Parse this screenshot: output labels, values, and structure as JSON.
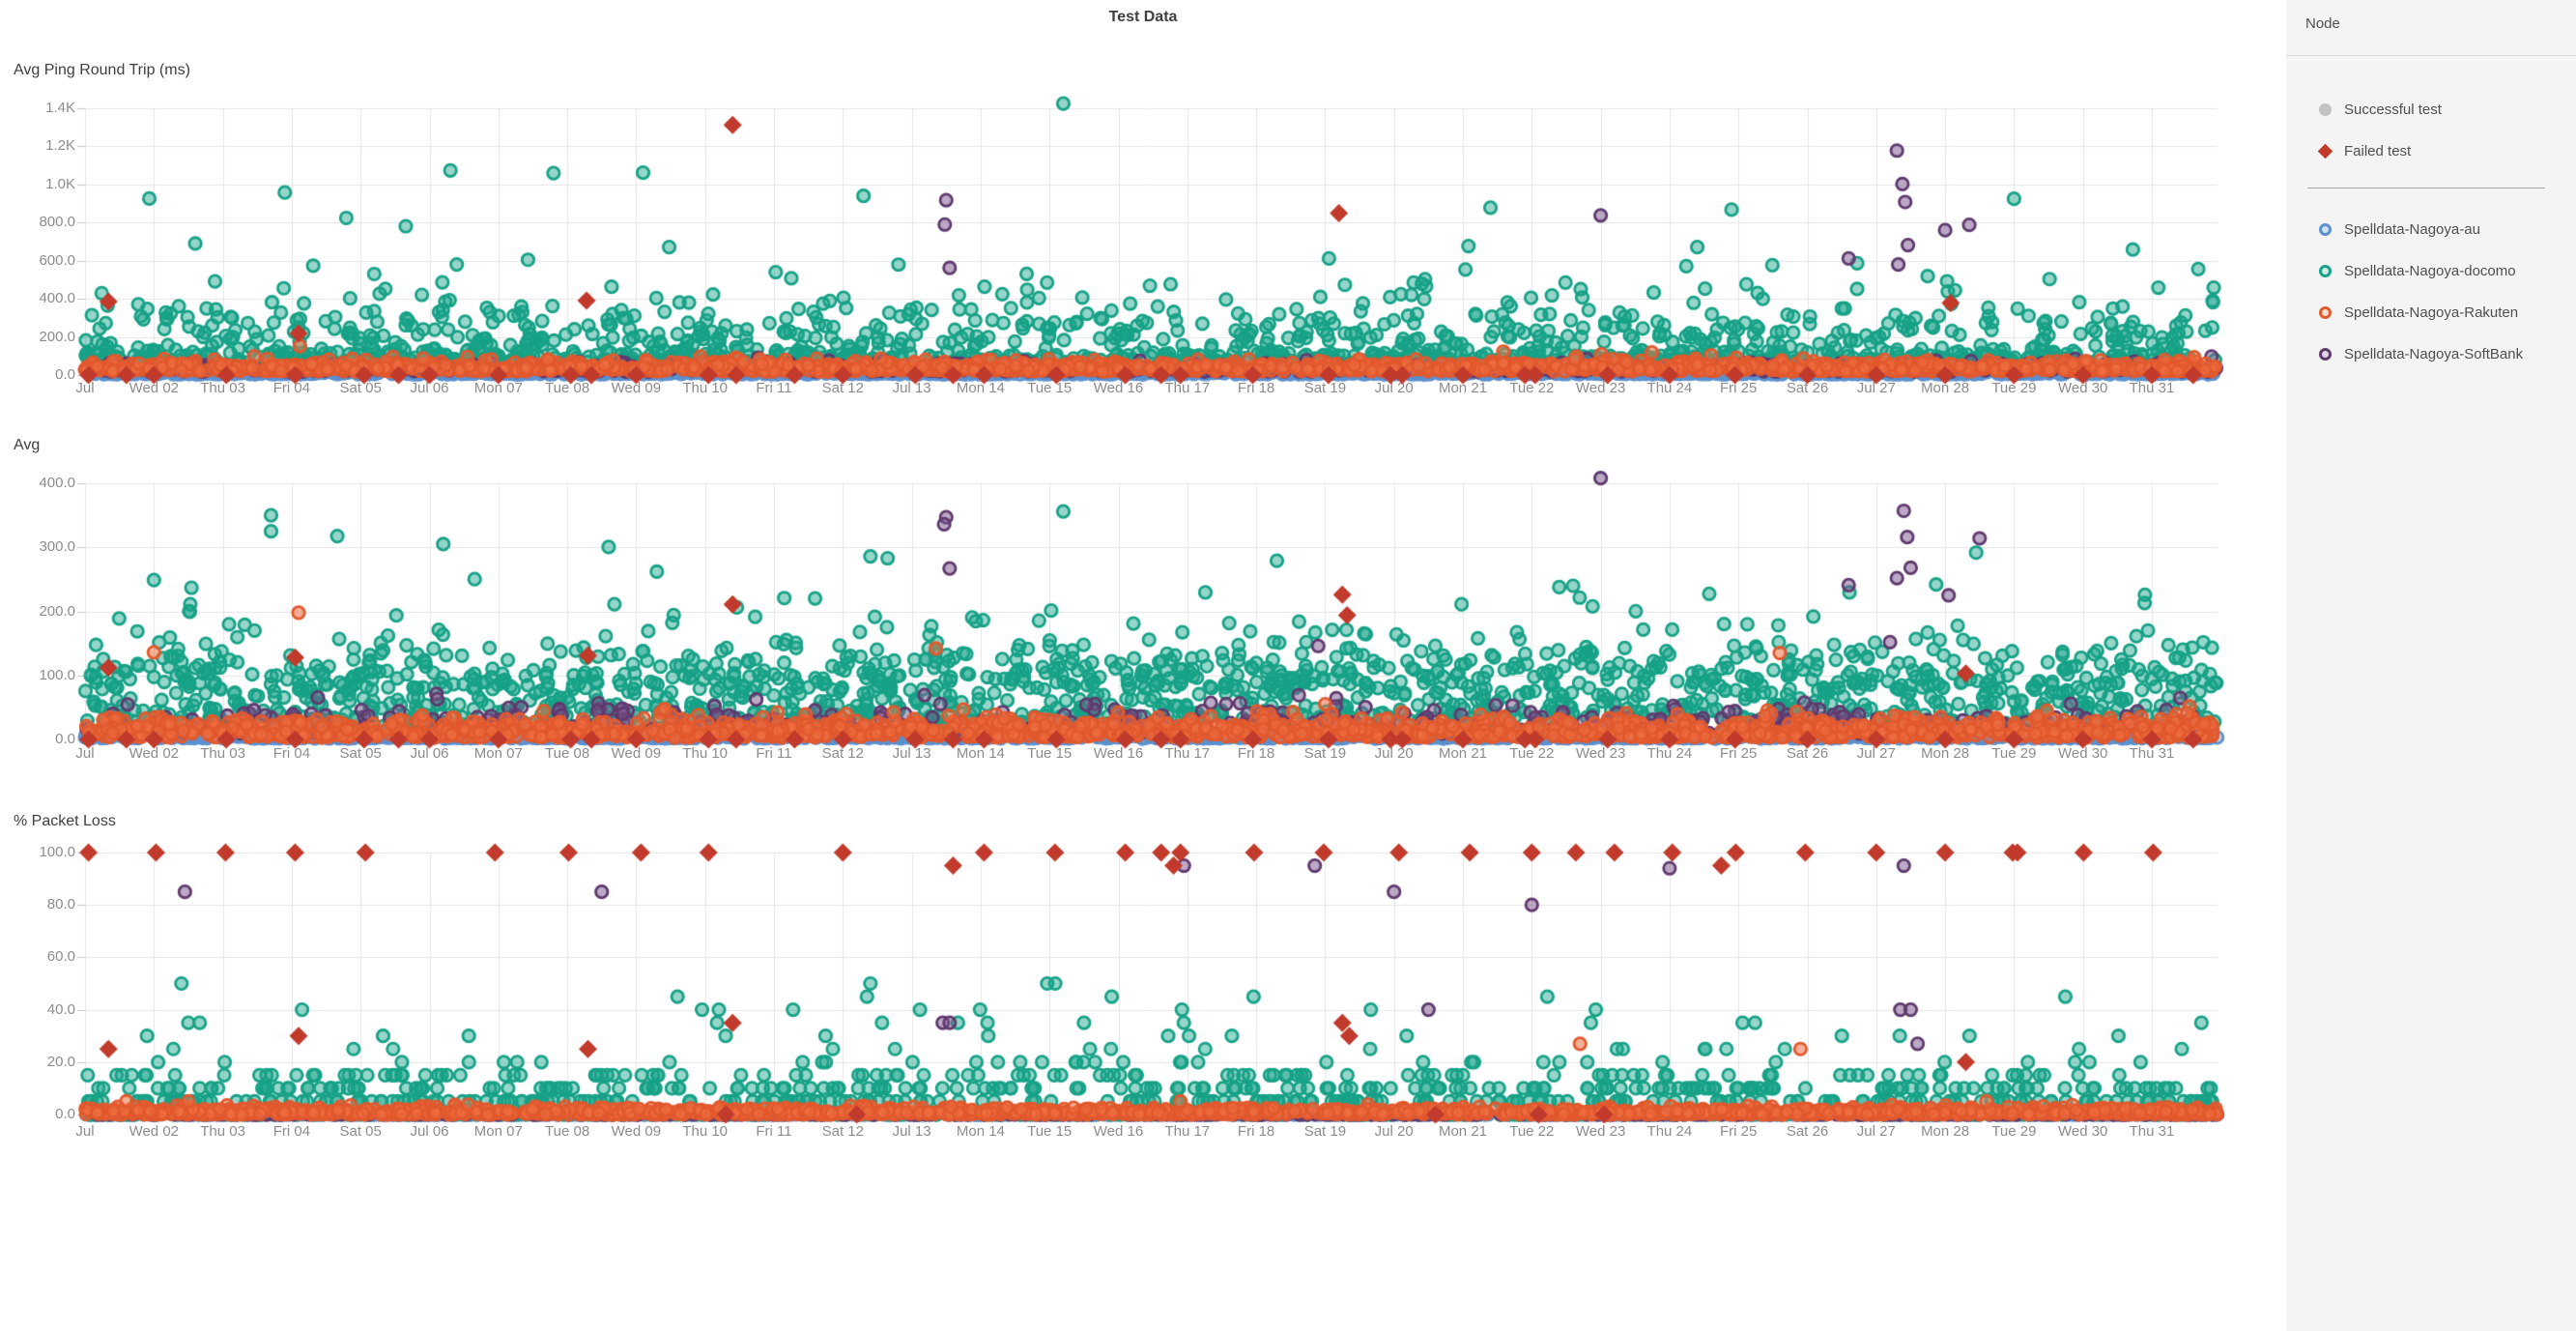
{
  "title": "Test Data",
  "palette": {
    "sidebarBg": "#f4f4f4",
    "divider1": "#dbdbdb",
    "divider2": "#a6a6a6",
    "titleText": "#3f3f3f",
    "axisText": "#8c8c8c",
    "legendText": "#4f4f4f",
    "grid": "#e4e4e4",
    "tickDash": "#c4c4c4",
    "success": "#c3c3c3",
    "failed": "#c13a2b",
    "au_stroke": "#5b91cf",
    "au_fill": "rgba(91,145,207,0.40)",
    "au_legend_fill": "#cfe0f2",
    "docomo_stroke": "#17a287",
    "docomo_fill": "rgba(23,162,135,0.45)",
    "docomo_legend_fill": "#d2ebe4",
    "rakuten_stroke": "#e2592e",
    "rakuten_fill": "rgba(238,112,66,0.55)",
    "rakuten_legend_fill": "#fadcd0",
    "softbank_stroke": "#5f3a6e",
    "softbank_fill": "rgba(122,83,140,0.50)",
    "softbank_legend_fill": "#e2d5e6"
  },
  "legend": {
    "title": "Node",
    "status": [
      {
        "label": "Successful test",
        "marker": "success"
      },
      {
        "label": "Failed test",
        "marker": "failed"
      }
    ],
    "nodes": [
      {
        "label": "Spelldata-Nagoya-au",
        "marker": "au"
      },
      {
        "label": "Spelldata-Nagoya-docomo",
        "marker": "docomo"
      },
      {
        "label": "Spelldata-Nagoya-Rakuten",
        "marker": "rakuten"
      },
      {
        "label": "Spelldata-Nagoya-SoftBank",
        "marker": "softbank"
      }
    ]
  },
  "chart_data": {
    "type": "scatter",
    "x_axis": "days of July, one test batch every ~30 min per node",
    "x_ticks": [
      "Jul",
      "Wed 02",
      "Thu 03",
      "Fri 04",
      "Sat 05",
      "Jul 06",
      "Mon 07",
      "Tue 08",
      "Wed 09",
      "Thu 10",
      "Fri 11",
      "Sat 12",
      "Jul 13",
      "Mon 14",
      "Tue 15",
      "Wed 16",
      "Thu 17",
      "Fri 18",
      "Sat 19",
      "Jul 20",
      "Mon 21",
      "Tue 22",
      "Wed 23",
      "Thu 24",
      "Fri 25",
      "Sat 26",
      "Jul 27",
      "Mon 28",
      "Tue 29",
      "Wed 30",
      "Thu 31"
    ],
    "x_domain_days": [
      1,
      31.95
    ],
    "grid": true,
    "legend_position": "right",
    "charts": [
      {
        "id": "ping",
        "title": "Avg Ping Round Trip (ms)",
        "ylim": [
          0,
          1460
        ],
        "y_ticks": [
          {
            "v": 0,
            "label": "0.0"
          },
          {
            "v": 200,
            "label": "200.0"
          },
          {
            "v": 400,
            "label": "400.0"
          },
          {
            "v": 600,
            "label": "600.0"
          },
          {
            "v": 800,
            "label": "800.0"
          },
          {
            "v": 1000,
            "label": "1.0K"
          },
          {
            "v": 1200,
            "label": "1.2K"
          },
          {
            "v": 1400,
            "label": "1.4K"
          }
        ],
        "series": [
          {
            "name": "Spelldata-Nagoya-au",
            "color": "au",
            "n": 1300,
            "seed": 101,
            "dist": {
              "kind": "band",
              "min": 4,
              "scale": 9,
              "max": 50
            },
            "outliers": []
          },
          {
            "name": "Spelldata-Nagoya-docomo",
            "color": "docomo",
            "n": 1350,
            "seed": 202,
            "dist": {
              "kind": "mix",
              "parts": [
                {
                  "w": 0.58,
                  "kind": "band",
                  "min": 62,
                  "scale": 40,
                  "max": 175
                },
                {
                  "w": 0.42,
                  "kind": "lognormal",
                  "base": 130,
                  "amp": 120,
                  "sigma": 0.7,
                  "max": 1090
                }
              ]
            },
            "outliers": [
              [
                15.2,
                1425
              ],
              [
                7.8,
                1060
              ],
              [
                9.1,
                1062
              ],
              [
                3.9,
                958
              ],
              [
                12.3,
                940
              ],
              [
                29.0,
                925
              ],
              [
                21.4,
                878
              ],
              [
                2.6,
                690
              ],
              [
                24.9,
                868
              ]
            ]
          },
          {
            "name": "Spelldata-Nagoya-SoftBank",
            "color": "softbank",
            "n": 520,
            "seed": 303,
            "dist": {
              "kind": "band",
              "min": 18,
              "scale": 24,
              "max": 110
            },
            "outliers": [
              [
                13.5,
                918
              ],
              [
                13.48,
                790
              ],
              [
                13.55,
                562
              ],
              [
                23.0,
                838
              ],
              [
                26.6,
                612
              ],
              [
                27.3,
                1178
              ],
              [
                27.38,
                1002
              ],
              [
                27.42,
                908
              ],
              [
                27.46,
                682
              ],
              [
                27.32,
                580
              ],
              [
                28.35,
                788
              ],
              [
                28.0,
                760
              ]
            ]
          },
          {
            "name": "Spelldata-Nagoya-Rakuten",
            "color": "rakuten",
            "n": 1420,
            "seed": 404,
            "dist": {
              "kind": "band",
              "min": 20,
              "scale": 26,
              "max": 125
            },
            "outliers": [
              [
                4.12,
                152
              ],
              [
                12.55,
                86
              ]
            ]
          }
        ],
        "failed_tests": {
          "at_zero_days": [
            1.05,
            1.6,
            2.0,
            3.05,
            4.05,
            5.05,
            5.55,
            6.0,
            7.0,
            8.05,
            8.35,
            9.0,
            10.05,
            10.45,
            11.3,
            12.0,
            13.05,
            13.6,
            14.05,
            15.1,
            16.1,
            16.62,
            16.9,
            17.95,
            19.05,
            19.95,
            20.12,
            21.0,
            21.9,
            22.05,
            23.1,
            24.0,
            24.95,
            26.0,
            27.0,
            28.0,
            29.0,
            30.0,
            31.0,
            31.6
          ],
          "points": [
            [
              1.34,
              385
            ],
            [
              4.1,
              218
            ],
            [
              8.28,
              390
            ],
            [
              10.4,
              1312
            ],
            [
              19.2,
              850
            ],
            [
              28.08,
              378
            ]
          ]
        }
      },
      {
        "id": "avg",
        "title": "Avg",
        "ylim": [
          0,
          432
        ],
        "y_ticks": [
          {
            "v": 0,
            "label": "0.0"
          },
          {
            "v": 100,
            "label": "100.0"
          },
          {
            "v": 200,
            "label": "200.0"
          },
          {
            "v": 300,
            "label": "300.0"
          },
          {
            "v": 400,
            "label": "400.0"
          }
        ],
        "series": [
          {
            "name": "Spelldata-Nagoya-au",
            "color": "au",
            "n": 1300,
            "seed": 111,
            "dist": {
              "kind": "band",
              "min": 1.5,
              "scale": 3.5,
              "max": 16
            },
            "outliers": []
          },
          {
            "name": "Spelldata-Nagoya-docomo",
            "color": "docomo",
            "n": 1650,
            "seed": 222,
            "dist": {
              "kind": "mix",
              "parts": [
                {
                  "w": 0.55,
                  "kind": "band",
                  "min": 20,
                  "scale": 34,
                  "max": 115
                },
                {
                  "w": 0.45,
                  "kind": "lognormal",
                  "base": 55,
                  "amp": 52,
                  "sigma": 0.56,
                  "max": 358
                }
              ]
            },
            "outliers": [
              [
                3.7,
                350
              ],
              [
                15.2,
                356
              ],
              [
                6.2,
                305
              ],
              [
                12.4,
                286
              ],
              [
                12.65,
                283
              ],
              [
                18.3,
                279
              ],
              [
                2.0,
                249
              ],
              [
                30.9,
                226
              ],
              [
                9.3,
                262
              ],
              [
                22.6,
                240
              ]
            ]
          },
          {
            "name": "Spelldata-Nagoya-SoftBank",
            "color": "softbank",
            "n": 520,
            "seed": 333,
            "dist": {
              "kind": "band",
              "min": 8,
              "scale": 22,
              "max": 85
            },
            "outliers": [
              [
                13.5,
                347
              ],
              [
                13.47,
                336
              ],
              [
                13.55,
                267
              ],
              [
                23.0,
                408
              ],
              [
                27.4,
                357
              ],
              [
                27.45,
                316
              ],
              [
                27.5,
                268
              ],
              [
                27.3,
                252
              ],
              [
                28.5,
                314
              ],
              [
                26.6,
                241
              ],
              [
                27.2,
                152
              ],
              [
                18.9,
                146
              ],
              [
                28.05,
                225
              ]
            ]
          },
          {
            "name": "Spelldata-Nagoya-Rakuten",
            "color": "rakuten",
            "n": 1500,
            "seed": 444,
            "dist": {
              "kind": "band",
              "min": 3,
              "scale": 15,
              "max": 52
            },
            "outliers": [
              [
                4.1,
                198
              ],
              [
                2.0,
                136
              ],
              [
                25.6,
                135
              ],
              [
                19.0,
                55
              ],
              [
                13.35,
                142
              ]
            ]
          }
        ],
        "failed_tests": {
          "at_zero_days": [
            1.05,
            1.6,
            2.0,
            3.05,
            4.05,
            5.05,
            5.55,
            6.0,
            7.0,
            8.05,
            8.35,
            9.0,
            10.05,
            10.45,
            11.3,
            12.0,
            13.05,
            13.6,
            14.05,
            15.1,
            16.1,
            16.62,
            16.9,
            17.95,
            19.05,
            19.95,
            20.12,
            21.0,
            21.9,
            22.05,
            23.1,
            24.0,
            24.95,
            26.0,
            27.0,
            28.0,
            29.0,
            30.0,
            31.0,
            31.6
          ],
          "points": [
            [
              1.34,
              112
            ],
            [
              4.05,
              128
            ],
            [
              8.3,
              131
            ],
            [
              10.4,
              211
            ],
            [
              19.25,
              226
            ],
            [
              19.32,
              194
            ],
            [
              28.3,
              103
            ]
          ]
        }
      },
      {
        "id": "loss",
        "title": "% Packet Loss",
        "ylim": [
          0,
          104
        ],
        "y_ticks": [
          {
            "v": 0,
            "label": "0.0"
          },
          {
            "v": 20,
            "label": "20.0"
          },
          {
            "v": 40,
            "label": "40.0"
          },
          {
            "v": 60,
            "label": "60.0"
          },
          {
            "v": 80,
            "label": "80.0"
          },
          {
            "v": 100,
            "label": "100.0"
          }
        ],
        "series": [
          {
            "name": "Spelldata-Nagoya-au",
            "color": "au",
            "n": 900,
            "seed": 11,
            "dist": {
              "kind": "choice",
              "values": [
                0
              ],
              "weights": [
                1
              ]
            },
            "outliers": []
          },
          {
            "name": "Spelldata-Nagoya-docomo",
            "color": "docomo",
            "n": 950,
            "seed": 22,
            "dist": {
              "kind": "choice",
              "values": [
                0,
                5,
                10,
                15,
                20,
                25,
                30,
                35,
                40,
                45,
                50
              ],
              "weights": [
                30,
                28,
                22,
                10,
                4,
                2,
                1.5,
                1,
                0.7,
                0.5,
                0.3
              ]
            },
            "outliers": [
              [
                12.4,
                50
              ],
              [
                12.35,
                45
              ],
              [
                9.6,
                45
              ],
              [
                10.2,
                40
              ],
              [
                4.15,
                40
              ],
              [
                14.1,
                35
              ],
              [
                15.5,
                35
              ],
              [
                16.95,
                35
              ],
              [
                26.5,
                30
              ],
              [
                1.9,
                30
              ],
              [
                2.5,
                35
              ]
            ]
          },
          {
            "name": "Spelldata-Nagoya-SoftBank",
            "color": "softbank",
            "n": 420,
            "seed": 33,
            "dist": {
              "kind": "choice",
              "values": [
                0
              ],
              "weights": [
                1
              ]
            },
            "outliers": [
              [
                2.45,
                85
              ],
              [
                8.5,
                85
              ],
              [
                20.0,
                85
              ],
              [
                22.0,
                80
              ],
              [
                20.5,
                40
              ],
              [
                27.35,
                40
              ],
              [
                27.5,
                40
              ],
              [
                27.6,
                27
              ],
              [
                13.45,
                35
              ],
              [
                13.55,
                35
              ],
              [
                16.95,
                95
              ],
              [
                18.85,
                95
              ],
              [
                27.4,
                95
              ],
              [
                24.0,
                94
              ]
            ]
          },
          {
            "name": "Spelldata-Nagoya-Rakuten",
            "color": "rakuten",
            "n": 1450,
            "seed": 44,
            "dist": {
              "kind": "band",
              "min": 0,
              "scale": 1.3,
              "max": 4
            },
            "outliers": [
              [
                1.6,
                5
              ],
              [
                2.5,
                5
              ],
              [
                16.9,
                5
              ],
              [
                22.7,
                27
              ],
              [
                25.9,
                25
              ],
              [
                28.6,
                5
              ]
            ]
          }
        ],
        "failed_tests": {
          "at_hundred_days": [
            1.05,
            2.03,
            3.04,
            4.05,
            5.07,
            6.95,
            8.02,
            9.07,
            10.05,
            12.0,
            14.05,
            15.08,
            16.1,
            16.62,
            16.9,
            17.97,
            18.98,
            20.07,
            21.1,
            22.0,
            22.64,
            23.2,
            24.04,
            24.96,
            25.97,
            27.0,
            28.0,
            28.98,
            29.05,
            30.01,
            31.02
          ],
          "points": [
            [
              13.6,
              95
            ],
            [
              16.8,
              95
            ],
            [
              24.75,
              95
            ],
            [
              1.34,
              25
            ],
            [
              4.1,
              30
            ],
            [
              8.3,
              25
            ],
            [
              10.4,
              35
            ],
            [
              19.25,
              35
            ],
            [
              19.35,
              30
            ],
            [
              28.3,
              20
            ],
            [
              10.3,
              0
            ],
            [
              12.2,
              0
            ],
            [
              20.6,
              0
            ],
            [
              22.1,
              0
            ],
            [
              23.05,
              0
            ]
          ]
        }
      }
    ]
  }
}
